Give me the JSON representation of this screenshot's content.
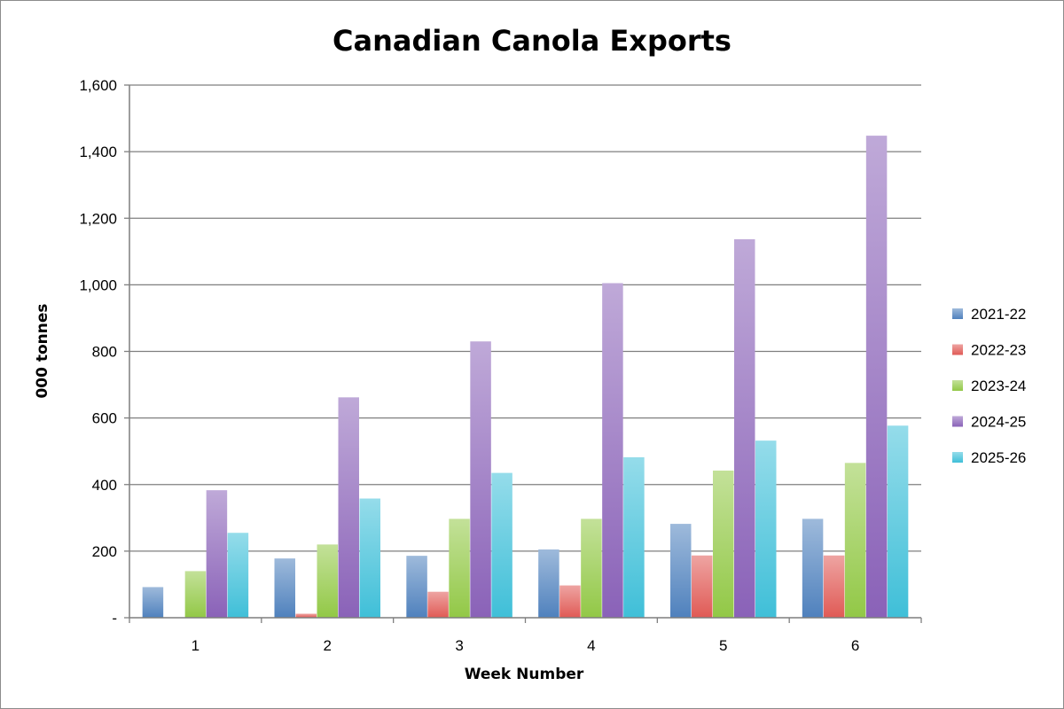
{
  "chart_data": {
    "type": "bar",
    "title": "Canadian Canola Exports",
    "xlabel": "Week Number",
    "ylabel": "000 tonnes",
    "categories": [
      "1",
      "2",
      "3",
      "4",
      "5",
      "6"
    ],
    "ylim": [
      0,
      1600
    ],
    "yticks": [
      0,
      200,
      400,
      600,
      800,
      1000,
      1200,
      1400,
      1600
    ],
    "ytick_labels": [
      "-",
      "200",
      "400",
      "600",
      "800",
      "1,000",
      "1,200",
      "1,400",
      "1,600"
    ],
    "grid": true,
    "legend_position": "right",
    "series": [
      {
        "name": "2021-22",
        "values": [
          92,
          178,
          186,
          205,
          282,
          297
        ],
        "color": "#4f81bd"
      },
      {
        "name": "2022-23",
        "values": [
          0,
          12,
          78,
          97,
          187,
          187
        ],
        "color": "#e05a55"
      },
      {
        "name": "2023-24",
        "values": [
          140,
          220,
          297,
          297,
          442,
          465
        ],
        "color": "#92c846"
      },
      {
        "name": "2024-25",
        "values": [
          383,
          662,
          830,
          1005,
          1137,
          1448
        ],
        "color": "#8a62b8"
      },
      {
        "name": "2025-26",
        "values": [
          255,
          358,
          435,
          482,
          532,
          577
        ],
        "color": "#3fbfd8"
      }
    ]
  }
}
